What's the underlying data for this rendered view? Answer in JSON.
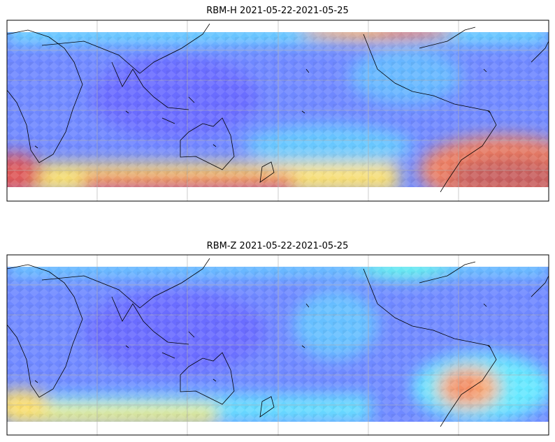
{
  "panels": [
    {
      "title": "RBM-H 2021-05-22-2021-05-25"
    },
    {
      "title": "RBM-Z 2021-05-22-2021-05-25"
    }
  ]
}
